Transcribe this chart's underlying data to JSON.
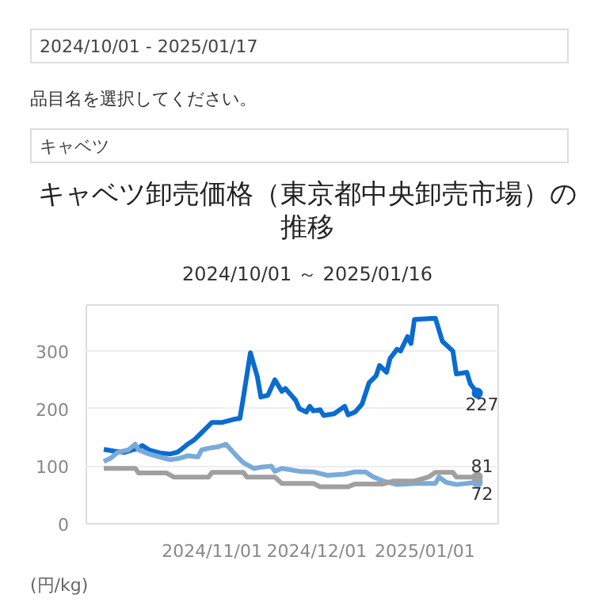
{
  "chart_data": {
    "type": "line",
    "title": "キャベツ卸売価格（東京都中央卸売市場）の推移",
    "subtitle": "2024/10/01 ～ 2025/01/16",
    "ylabel": "(円/kg)",
    "annotations": [
      "2024/10/01 - 2025/01/17",
      "品目名を選択してください。",
      "キャベツ"
    ],
    "xlim": [
      "2024-09-26",
      "2025-01-22"
    ],
    "xticks": [
      {
        "value": "2024-11-01",
        "label": "2024/11/01"
      },
      {
        "value": "2024-12-01",
        "label": "2024/12/01"
      },
      {
        "value": "2025-01-01",
        "label": "2025/01/01"
      }
    ],
    "ylim": [
      0,
      380
    ],
    "yticks": [
      0,
      100,
      200,
      300
    ],
    "grid": "y",
    "series": [
      {
        "color": "#0a6ccf",
        "x": [
          "2024-10-01",
          "2024-10-04",
          "2024-10-07",
          "2024-10-09",
          "2024-10-11",
          "2024-10-12",
          "2024-10-14",
          "2024-10-17",
          "2024-10-20",
          "2024-10-22",
          "2024-10-23",
          "2024-10-25",
          "2024-10-27",
          "2024-10-29",
          "2024-10-30",
          "2024-11-01",
          "2024-11-04",
          "2024-11-07",
          "2024-11-09",
          "2024-11-10",
          "2024-11-12",
          "2024-11-14",
          "2024-11-15",
          "2024-11-17",
          "2024-11-19",
          "2024-11-21",
          "2024-11-22",
          "2024-11-25",
          "2024-11-26",
          "2024-11-28",
          "2024-11-29",
          "2024-11-30",
          "2024-12-02",
          "2024-12-03",
          "2024-12-06",
          "2024-12-09",
          "2024-12-10",
          "2024-12-12",
          "2024-12-14",
          "2024-12-16",
          "2024-12-18",
          "2024-12-19",
          "2024-12-21",
          "2024-12-22",
          "2024-12-24",
          "2024-12-25",
          "2024-12-27",
          "2024-12-28",
          "2024-12-29",
          "2025-01-04",
          "2025-01-06",
          "2025-01-09",
          "2025-01-10",
          "2025-01-13",
          "2025-01-14",
          "2025-01-16"
        ],
        "values": [
          129,
          126,
          124,
          128,
          131,
          136,
          128,
          123,
          121,
          124,
          128,
          138,
          146,
          158,
          164,
          176,
          176,
          181,
          183,
          220,
          297,
          255,
          220,
          223,
          250,
          230,
          235,
          214,
          200,
          194,
          204,
          196,
          198,
          188,
          191,
          204,
          189,
          194,
          208,
          245,
          257,
          275,
          263,
          287,
          303,
          300,
          325,
          313,
          355,
          357,
          317,
          300,
          260,
          263,
          243,
          227
        ],
        "value_labels": [
          null,
          null,
          null,
          null,
          null,
          null,
          null,
          null,
          null,
          null,
          null,
          null,
          null,
          null,
          null,
          null,
          null,
          null,
          null,
          null,
          null,
          null,
          null,
          null,
          null,
          null,
          null,
          null,
          null,
          null,
          null,
          null,
          null,
          null,
          null,
          null,
          null,
          null,
          null,
          null,
          null,
          null,
          null,
          null,
          null,
          null,
          null,
          null,
          null,
          null,
          null,
          null,
          null,
          null,
          null,
          "227"
        ]
      },
      {
        "color": "#7aaad8",
        "x": [
          "2024-10-01",
          "2024-10-03",
          "2024-10-05",
          "2024-10-08",
          "2024-10-10",
          "2024-10-11",
          "2024-10-14",
          "2024-10-17",
          "2024-10-20",
          "2024-10-23",
          "2024-10-25",
          "2024-10-28",
          "2024-10-29",
          "2024-10-31",
          "2024-11-03",
          "2024-11-05",
          "2024-11-08",
          "2024-11-10",
          "2024-11-13",
          "2024-11-15",
          "2024-11-18",
          "2024-11-19",
          "2024-11-21",
          "2024-11-26",
          "2024-11-30",
          "2024-12-04",
          "2024-12-09",
          "2024-12-12",
          "2024-12-15",
          "2024-12-17",
          "2024-12-20",
          "2024-12-24",
          "2024-12-29",
          "2025-01-04",
          "2025-01-05",
          "2025-01-07",
          "2025-01-10",
          "2025-01-16"
        ],
        "values": [
          108,
          114,
          124,
          128,
          138,
          128,
          121,
          116,
          111,
          114,
          118,
          116,
          128,
          131,
          134,
          138,
          118,
          106,
          96,
          98,
          100,
          91,
          96,
          91,
          90,
          84,
          86,
          90,
          90,
          82,
          74,
          68,
          70,
          70,
          81,
          72,
          68,
          72
        ],
        "value_labels": [
          null,
          null,
          null,
          null,
          null,
          null,
          null,
          null,
          null,
          null,
          null,
          null,
          null,
          null,
          null,
          null,
          null,
          null,
          null,
          null,
          null,
          null,
          null,
          null,
          null,
          null,
          null,
          null,
          null,
          null,
          null,
          null,
          null,
          null,
          null,
          null,
          null,
          "72"
        ]
      },
      {
        "color": "#a0a0a0",
        "x": [
          "2024-10-01",
          "2024-10-10",
          "2024-10-11",
          "2024-10-19",
          "2024-10-21",
          "2024-10-31",
          "2024-11-01",
          "2024-11-10",
          "2024-11-11",
          "2024-11-19",
          "2024-11-21",
          "2024-11-30",
          "2024-12-02",
          "2024-12-10",
          "2024-12-12",
          "2024-12-20",
          "2024-12-23",
          "2024-12-29",
          "2025-01-02",
          "2025-01-04",
          "2025-01-09",
          "2025-01-10",
          "2025-01-16"
        ],
        "values": [
          96,
          96,
          88,
          88,
          81,
          81,
          89,
          89,
          81,
          81,
          70,
          70,
          64,
          64,
          69,
          69,
          74,
          74,
          81,
          89,
          89,
          81,
          81
        ],
        "value_labels": [
          null,
          null,
          null,
          null,
          null,
          null,
          null,
          null,
          null,
          null,
          null,
          null,
          null,
          null,
          null,
          null,
          null,
          null,
          null,
          null,
          null,
          null,
          "81"
        ]
      }
    ]
  }
}
